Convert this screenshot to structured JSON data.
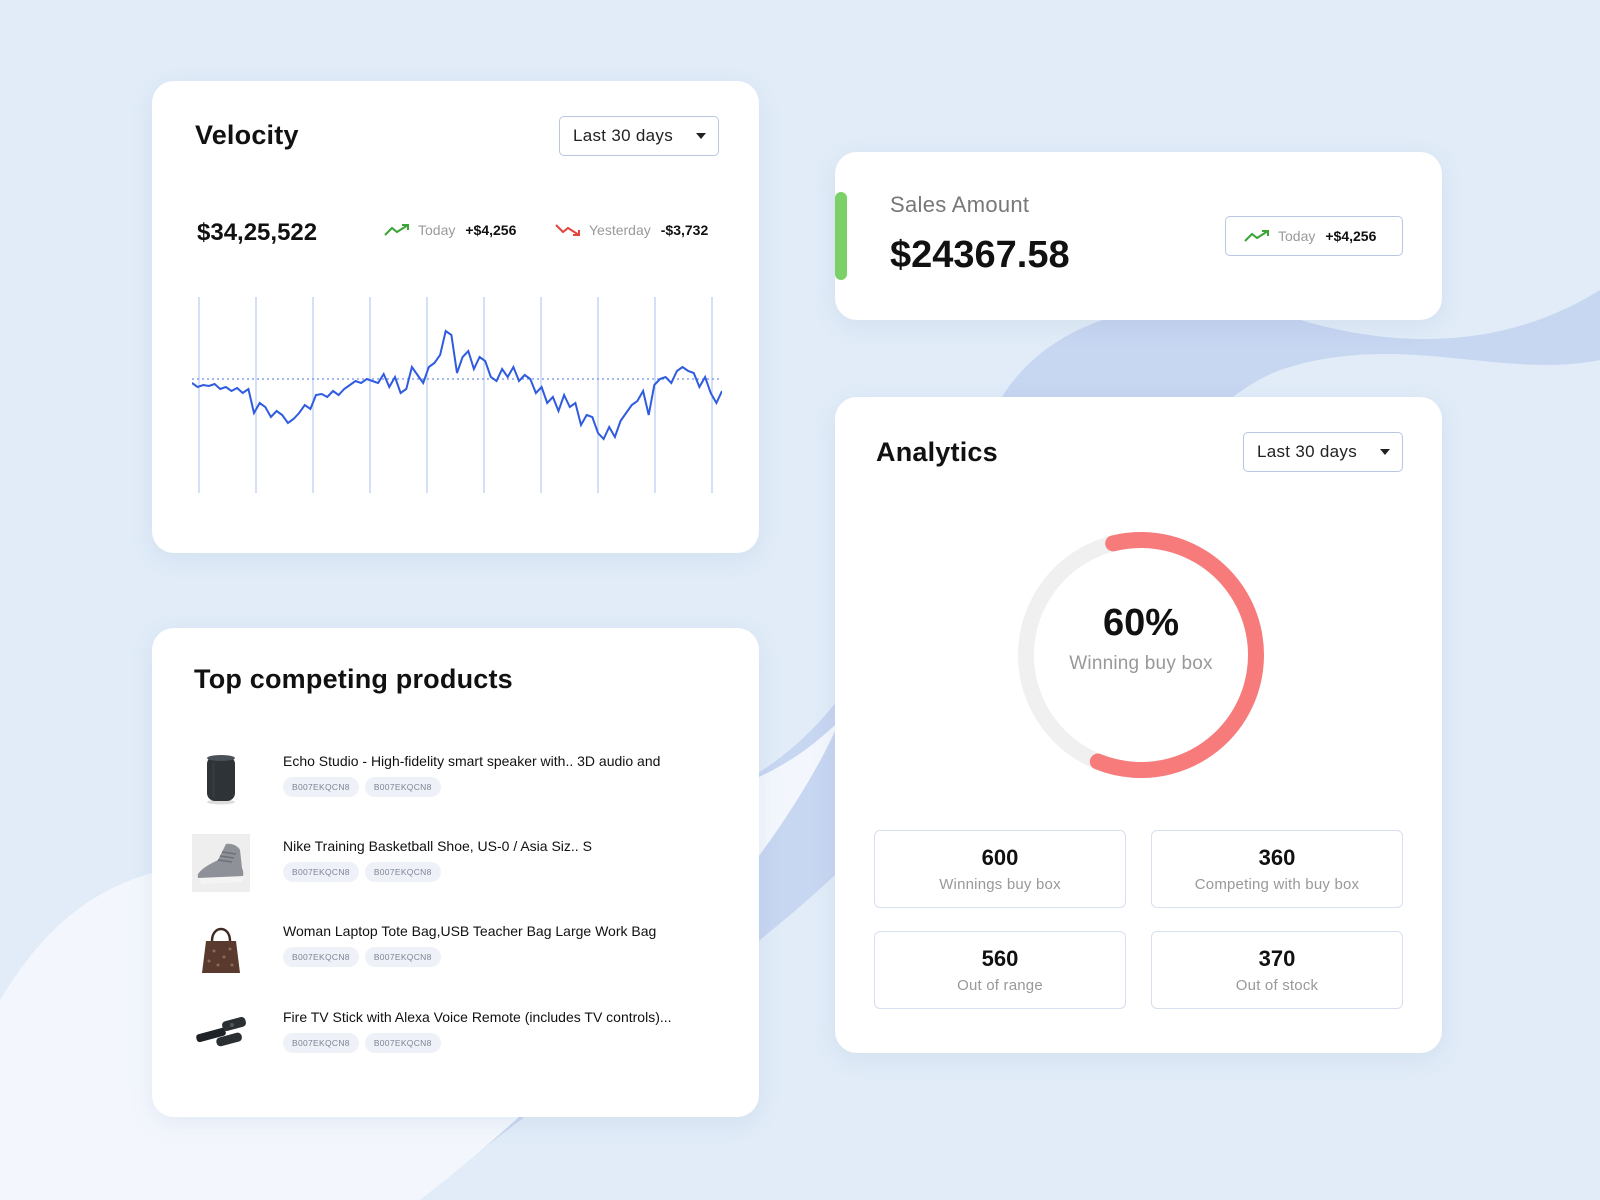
{
  "velocity": {
    "title": "Velocity",
    "range": "Last 30 days",
    "amount": "$34,25,522",
    "today_label": "Today",
    "today_value": "+$4,256",
    "yesterday_label": "Yesterday",
    "yesterday_value": "-$3,732",
    "up_color": "#3aa534",
    "down_color": "#e2453c",
    "line_color": "#2f5be0"
  },
  "products": {
    "title": "Top competing products",
    "items": [
      {
        "name": "Echo Studio - High-fidelity smart speaker with.. 3D audio and",
        "tags": [
          "B007EKQCN8",
          "B007EKQCN8"
        ],
        "icon": "speaker-icon"
      },
      {
        "name": "Nike Training Basketball Shoe, US-0 / Asia Siz.. S",
        "tags": [
          "B007EKQCN8",
          "B007EKQCN8"
        ],
        "icon": "shoe-icon"
      },
      {
        "name": "Woman Laptop Tote Bag,USB Teacher Bag Large Work Bag",
        "tags": [
          "B007EKQCN8",
          "B007EKQCN8"
        ],
        "icon": "tote-bag-icon"
      },
      {
        "name": "Fire TV Stick with Alexa Voice Remote (includes TV controls)...",
        "tags": [
          "B007EKQCN8",
          "B007EKQCN8"
        ],
        "icon": "tv-stick-icon"
      }
    ]
  },
  "sales": {
    "label": "Sales Amount",
    "amount": "$24367.58",
    "badge_label": "Today",
    "badge_value": "+$4,256",
    "accent_color": "#7bd067"
  },
  "analytics": {
    "title": "Analytics",
    "range": "Last 30 days",
    "percent": 60,
    "percent_text": "60%",
    "percent_label": "Winning buy box",
    "ring_color": "#f77b7b",
    "stats": [
      {
        "value": "600",
        "label": "Winnings buy box"
      },
      {
        "value": "360",
        "label": "Competing with buy box"
      },
      {
        "value": "560",
        "label": "Out of range"
      },
      {
        "value": "370",
        "label": "Out of stock"
      }
    ]
  }
}
